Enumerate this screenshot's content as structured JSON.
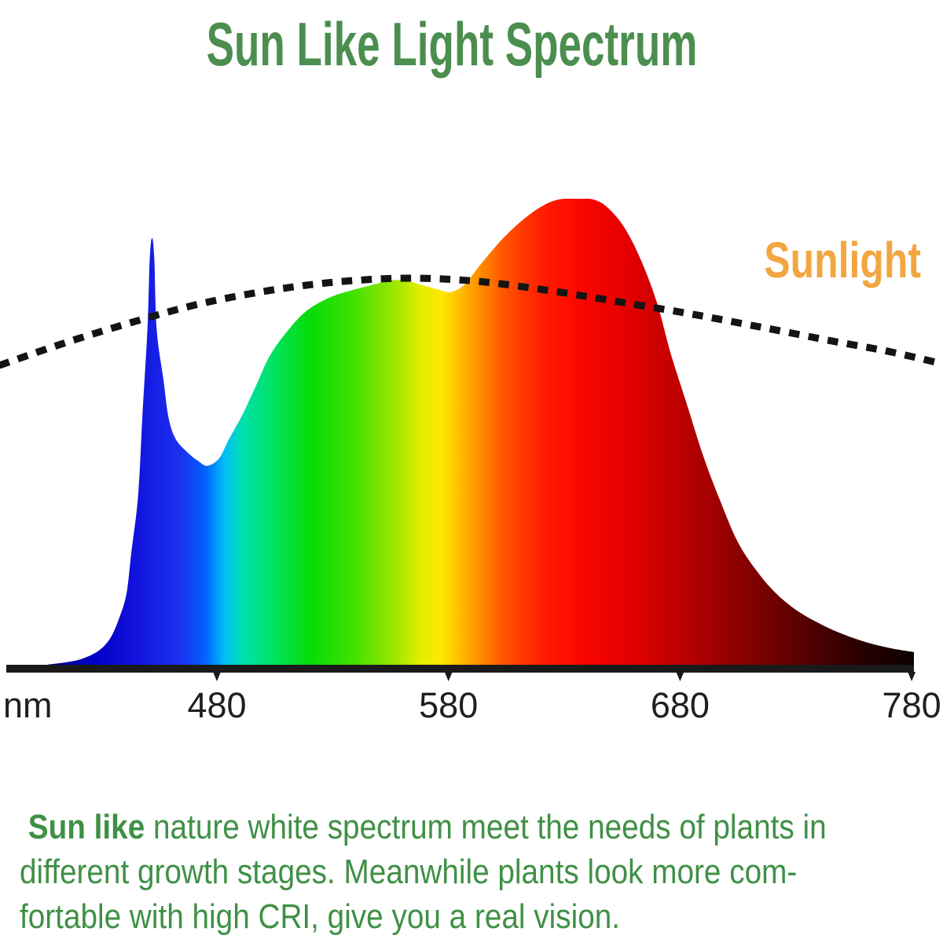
{
  "title": "Sun Like Light Spectrum",
  "sunlight_label": "Sunlight",
  "axis": {
    "unit_label": "nm"
  },
  "paragraph": {
    "bold_lead": " Sun like",
    "line1_rest": " nature white spectrum meet the needs of plants in",
    "line2": "different growth stages. Meanwhile plants look more com-",
    "line3": "fortable with high CRI, give you a real vision."
  },
  "colors": {
    "title_green": "#4b8e4f",
    "paragraph_green": "#3f9045",
    "sunlight_orange": "#f2a640",
    "axis_color": "#1a1a1a",
    "dash_color": "#141414",
    "tick_label_color": "#1f1f1f"
  },
  "chart_data": {
    "type": "area",
    "title": "Sun Like Light Spectrum",
    "xlabel": "nm",
    "ylabel": "",
    "x_range_nm": [
      390,
      792
    ],
    "ylim": [
      0,
      100
    ],
    "grid": false,
    "x_ticks": [
      {
        "label": "480",
        "nm": 480
      },
      {
        "label": "580",
        "nm": 580
      },
      {
        "label": "680",
        "nm": 680
      },
      {
        "label": "780",
        "nm": 780
      }
    ],
    "series": [
      {
        "name": "sun-like LED spectrum",
        "style": "filled-area-rainbow-gradient",
        "points": [
          [
            407,
            0.2
          ],
          [
            415,
            0.7
          ],
          [
            422,
            1.5
          ],
          [
            429,
            3.2
          ],
          [
            434,
            5.9
          ],
          [
            438,
            10.4
          ],
          [
            441,
            15.5
          ],
          [
            443,
            24
          ],
          [
            446,
            36.5
          ],
          [
            448,
            55
          ],
          [
            450,
            72
          ],
          [
            451,
            87
          ],
          [
            452,
            91.6
          ],
          [
            453,
            87
          ],
          [
            454,
            72
          ],
          [
            457,
            61
          ],
          [
            459,
            53.4
          ],
          [
            462,
            48.7
          ],
          [
            467,
            45.8
          ],
          [
            472,
            43.8
          ],
          [
            476,
            42.8
          ],
          [
            481,
            44.4
          ],
          [
            485,
            48.3
          ],
          [
            491,
            53.7
          ],
          [
            497,
            60.1
          ],
          [
            503,
            66.5
          ],
          [
            511,
            72
          ],
          [
            519,
            76.1
          ],
          [
            529,
            78.9
          ],
          [
            539,
            80.5
          ],
          [
            549,
            81.8
          ],
          [
            554,
            82.5
          ],
          [
            561,
            82.5
          ],
          [
            568,
            81.6
          ],
          [
            576,
            80.5
          ],
          [
            581,
            80
          ],
          [
            587,
            81.6
          ],
          [
            593,
            85.4
          ],
          [
            602,
            90.7
          ],
          [
            610,
            94.6
          ],
          [
            619,
            98
          ],
          [
            627,
            99.8
          ],
          [
            636,
            100
          ],
          [
            643,
            99.8
          ],
          [
            649,
            98
          ],
          [
            656,
            93.8
          ],
          [
            663,
            87
          ],
          [
            670,
            77.8
          ],
          [
            676,
            66.8
          ],
          [
            683,
            55.9
          ],
          [
            690,
            44.9
          ],
          [
            697,
            35.7
          ],
          [
            705,
            26.4
          ],
          [
            714,
            19.7
          ],
          [
            722,
            15.2
          ],
          [
            731,
            11.6
          ],
          [
            741,
            8.8
          ],
          [
            751,
            6.6
          ],
          [
            761,
            4.9
          ],
          [
            771,
            3.7
          ],
          [
            781,
            2.9
          ]
        ]
      },
      {
        "name": "Sunlight",
        "style": "dashed-black-line",
        "points": [
          [
            386,
            64.3
          ],
          [
            413,
            68.9
          ],
          [
            441,
            73.2
          ],
          [
            471,
            77.3
          ],
          [
            502,
            80.3
          ],
          [
            532,
            82.2
          ],
          [
            563,
            83
          ],
          [
            593,
            82.3
          ],
          [
            624,
            80.3
          ],
          [
            654,
            77.9
          ],
          [
            685,
            75.3
          ],
          [
            716,
            72.4
          ],
          [
            746,
            69.5
          ],
          [
            770,
            67.3
          ],
          [
            792,
            64.8
          ]
        ]
      }
    ],
    "gradient_stops": [
      {
        "pos": 0.0,
        "color": "#00008b"
      },
      {
        "pos": 0.055,
        "color": "#0000c8"
      },
      {
        "pos": 0.1,
        "color": "#1212dc"
      },
      {
        "pos": 0.155,
        "color": "#1c32f0"
      },
      {
        "pos": 0.183,
        "color": "#0064ff"
      },
      {
        "pos": 0.205,
        "color": "#00c0f5"
      },
      {
        "pos": 0.227,
        "color": "#00e0aa"
      },
      {
        "pos": 0.263,
        "color": "#00e35c"
      },
      {
        "pos": 0.304,
        "color": "#06dc06"
      },
      {
        "pos": 0.354,
        "color": "#44e000"
      },
      {
        "pos": 0.4,
        "color": "#9ae600"
      },
      {
        "pos": 0.431,
        "color": "#e2ee00"
      },
      {
        "pos": 0.455,
        "color": "#ffe800"
      },
      {
        "pos": 0.49,
        "color": "#ffa000"
      },
      {
        "pos": 0.526,
        "color": "#ff5500"
      },
      {
        "pos": 0.571,
        "color": "#ff1e00"
      },
      {
        "pos": 0.617,
        "color": "#fa0500"
      },
      {
        "pos": 0.671,
        "color": "#e30000"
      },
      {
        "pos": 0.734,
        "color": "#ba0000"
      },
      {
        "pos": 0.807,
        "color": "#850000"
      },
      {
        "pos": 0.879,
        "color": "#520000"
      },
      {
        "pos": 0.943,
        "color": "#260000"
      },
      {
        "pos": 1.0,
        "color": "#0d0000"
      }
    ]
  }
}
